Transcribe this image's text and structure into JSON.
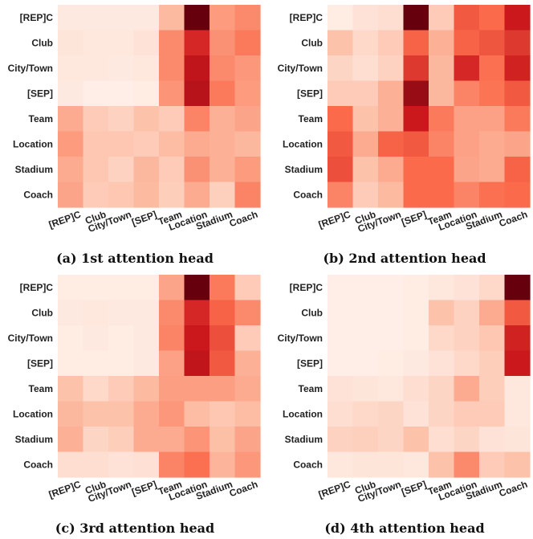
{
  "figure": {
    "panels": [
      "(a) 1st attention head",
      "(b) 2nd attention head",
      "(c) 3rd attention head",
      "(d) 4th attention head"
    ]
  },
  "chart_data": [
    {
      "type": "heatmap",
      "caption": "(a) 1st attention head",
      "rows": [
        "[REP]C",
        "Club",
        "City/Town",
        "[SEP]",
        "Team",
        "Location",
        "Stadium",
        "Coach"
      ],
      "cols": [
        "[REP]C",
        "Club",
        "City/Town",
        "[SEP]",
        "Team",
        "Location",
        "Stadium",
        "Coach"
      ],
      "values": [
        [
          0.05,
          0.05,
          0.05,
          0.05,
          0.25,
          1.0,
          0.35,
          0.4
        ],
        [
          0.07,
          0.06,
          0.06,
          0.08,
          0.4,
          0.7,
          0.38,
          0.45
        ],
        [
          0.06,
          0.06,
          0.05,
          0.06,
          0.4,
          0.78,
          0.4,
          0.36
        ],
        [
          0.05,
          0.03,
          0.03,
          0.04,
          0.37,
          0.8,
          0.45,
          0.35
        ],
        [
          0.3,
          0.18,
          0.15,
          0.22,
          0.18,
          0.42,
          0.28,
          0.32
        ],
        [
          0.35,
          0.2,
          0.2,
          0.18,
          0.24,
          0.3,
          0.28,
          0.26
        ],
        [
          0.3,
          0.2,
          0.15,
          0.26,
          0.18,
          0.38,
          0.28,
          0.35
        ],
        [
          0.32,
          0.18,
          0.2,
          0.25,
          0.17,
          0.3,
          0.16,
          0.42
        ]
      ],
      "colorscale": [
        "#fff5f0",
        "#fcbba1",
        "#fb6a4a",
        "#cb181d",
        "#67000d"
      ]
    },
    {
      "type": "heatmap",
      "caption": "(b) 2nd attention head",
      "rows": [
        "[REP]C",
        "Club",
        "City/Town",
        "[SEP]",
        "Team",
        "Location",
        "Stadium",
        "Coach"
      ],
      "cols": [
        "[REP]C",
        "Club",
        "City/Town",
        "[SEP]",
        "Team",
        "Location",
        "Stadium",
        "Coach"
      ],
      "values": [
        [
          0.04,
          0.08,
          0.1,
          1.0,
          0.18,
          0.55,
          0.5,
          0.75
        ],
        [
          0.22,
          0.12,
          0.18,
          0.52,
          0.28,
          0.52,
          0.56,
          0.65
        ],
        [
          0.14,
          0.1,
          0.15,
          0.65,
          0.26,
          0.7,
          0.48,
          0.72
        ],
        [
          0.18,
          0.18,
          0.28,
          0.88,
          0.26,
          0.42,
          0.47,
          0.55
        ],
        [
          0.5,
          0.22,
          0.28,
          0.75,
          0.45,
          0.33,
          0.33,
          0.45
        ],
        [
          0.55,
          0.3,
          0.52,
          0.55,
          0.42,
          0.33,
          0.3,
          0.32
        ],
        [
          0.58,
          0.22,
          0.3,
          0.5,
          0.5,
          0.32,
          0.3,
          0.52
        ],
        [
          0.42,
          0.18,
          0.25,
          0.5,
          0.5,
          0.42,
          0.48,
          0.5
        ]
      ],
      "colorscale": [
        "#fff5f0",
        "#fcbba1",
        "#fb6a4a",
        "#cb181d",
        "#67000d"
      ]
    },
    {
      "type": "heatmap",
      "caption": "(c) 3rd attention head",
      "rows": [
        "[REP]C",
        "Club",
        "City/Town",
        "[SEP]",
        "Team",
        "Location",
        "Stadium",
        "Coach"
      ],
      "cols": [
        "[REP]C",
        "Club",
        "City/Town",
        "[SEP]",
        "Team",
        "Location",
        "Stadium",
        "Coach"
      ],
      "values": [
        [
          0.04,
          0.04,
          0.04,
          0.04,
          0.32,
          1.0,
          0.45,
          0.18
        ],
        [
          0.05,
          0.06,
          0.05,
          0.05,
          0.4,
          0.7,
          0.52,
          0.4
        ],
        [
          0.04,
          0.05,
          0.04,
          0.05,
          0.42,
          0.75,
          0.58,
          0.18
        ],
        [
          0.04,
          0.04,
          0.04,
          0.05,
          0.33,
          0.78,
          0.55,
          0.28
        ],
        [
          0.22,
          0.12,
          0.18,
          0.25,
          0.34,
          0.34,
          0.34,
          0.3
        ],
        [
          0.26,
          0.22,
          0.22,
          0.3,
          0.36,
          0.24,
          0.2,
          0.24
        ],
        [
          0.28,
          0.14,
          0.17,
          0.3,
          0.3,
          0.37,
          0.23,
          0.32
        ],
        [
          0.1,
          0.1,
          0.08,
          0.09,
          0.42,
          0.48,
          0.27,
          0.36
        ]
      ],
      "colorscale": [
        "#fff5f0",
        "#fcbba1",
        "#fb6a4a",
        "#cb181d",
        "#67000d"
      ]
    },
    {
      "type": "heatmap",
      "caption": "(d) 4th attention head",
      "rows": [
        "[REP]C",
        "Club",
        "City/Town",
        "[SEP]",
        "Team",
        "Location",
        "Stadium",
        "Coach"
      ],
      "cols": [
        "[REP]C",
        "Club",
        "City/Town",
        "[SEP]",
        "Team",
        "Location",
        "Stadium",
        "Coach"
      ],
      "values": [
        [
          0.03,
          0.03,
          0.03,
          0.04,
          0.06,
          0.08,
          0.12,
          1.0
        ],
        [
          0.03,
          0.03,
          0.03,
          0.04,
          0.22,
          0.15,
          0.3,
          0.55
        ],
        [
          0.03,
          0.03,
          0.03,
          0.04,
          0.12,
          0.15,
          0.2,
          0.72
        ],
        [
          0.03,
          0.03,
          0.04,
          0.05,
          0.08,
          0.12,
          0.17,
          0.75
        ],
        [
          0.08,
          0.07,
          0.06,
          0.1,
          0.14,
          0.3,
          0.17,
          0.06
        ],
        [
          0.1,
          0.12,
          0.14,
          0.08,
          0.14,
          0.18,
          0.18,
          0.06
        ],
        [
          0.15,
          0.16,
          0.14,
          0.22,
          0.1,
          0.14,
          0.08,
          0.07
        ],
        [
          0.06,
          0.07,
          0.07,
          0.06,
          0.22,
          0.4,
          0.18,
          0.22
        ]
      ],
      "colorscale": [
        "#fff5f0",
        "#fcbba1",
        "#fb6a4a",
        "#cb181d",
        "#67000d"
      ]
    }
  ]
}
